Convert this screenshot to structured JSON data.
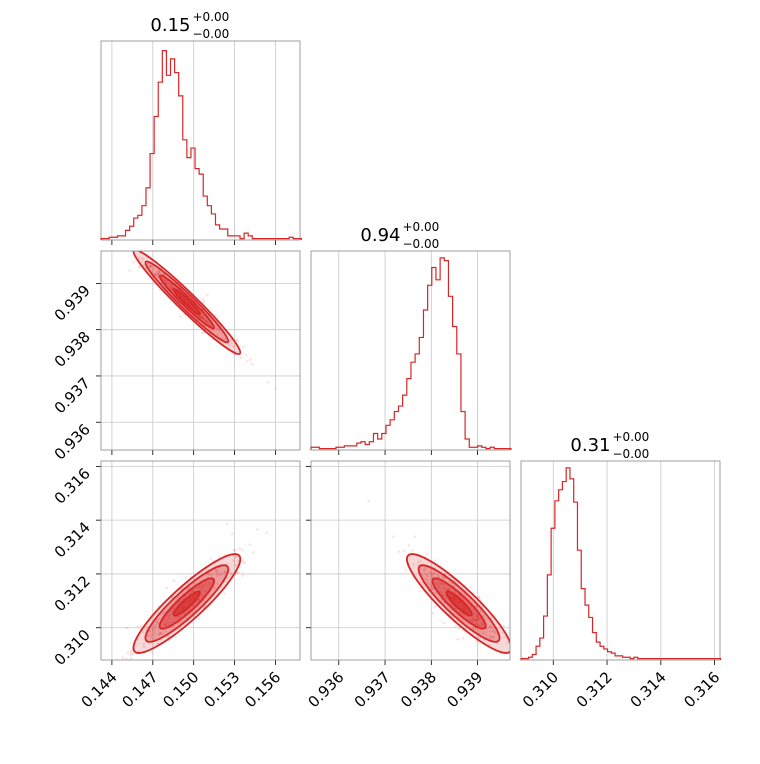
{
  "figure": {
    "type": "corner-plot",
    "accent_color": "#d62728",
    "grid": true
  },
  "chart_data": [
    {
      "type": "histogram",
      "panel": "hist-0",
      "title_value": "0.15",
      "title_sup": "+0.00",
      "title_sub": "−0.00",
      "xlim": [
        0.1432,
        0.1578
      ],
      "ylim": [
        0,
        145
      ],
      "x_ticks": [
        0.144,
        0.147,
        0.15,
        0.153,
        0.156
      ],
      "bin_start": 0.1432,
      "bin_width": 0.0003,
      "counts": [
        1,
        1,
        2,
        2,
        3,
        3,
        7,
        10,
        16,
        18,
        25,
        38,
        63,
        90,
        115,
        138,
        120,
        132,
        122,
        105,
        73,
        60,
        67,
        52,
        48,
        32,
        25,
        19,
        11,
        8,
        8,
        3,
        3,
        3,
        1,
        5,
        3,
        1,
        1,
        1,
        1,
        1,
        1,
        1,
        1,
        1,
        2,
        1,
        1
      ]
    },
    {
      "type": "histogram",
      "panel": "hist-1",
      "title_value": "0.94",
      "title_sup": "+0.00",
      "title_sub": "−0.00",
      "xlim": [
        0.9354,
        0.9397
      ],
      "ylim": [
        0,
        145
      ],
      "x_ticks": [
        0.936,
        0.937,
        0.938,
        0.939
      ],
      "bin_start": 0.9354,
      "bin_width": 9e-05,
      "counts": [
        2,
        2,
        1,
        1,
        1,
        1,
        2,
        2,
        3,
        3,
        3,
        5,
        6,
        4,
        6,
        12,
        8,
        12,
        18,
        22,
        28,
        32,
        40,
        52,
        64,
        70,
        82,
        102,
        120,
        133,
        124,
        140,
        138,
        112,
        90,
        70,
        28,
        8,
        2,
        2,
        3,
        2,
        1,
        2,
        1,
        1,
        1,
        1
      ]
    },
    {
      "type": "histogram",
      "panel": "hist-2",
      "title_value": "0.31",
      "title_sup": "+0.00",
      "title_sub": "−0.00",
      "xlim": [
        0.3088,
        0.3162
      ],
      "ylim": [
        0,
        145
      ],
      "x_ticks": [
        0.31,
        0.312,
        0.314,
        0.316
      ],
      "bin_start": 0.3088,
      "bin_width": 0.00014,
      "counts": [
        1,
        1,
        2,
        4,
        10,
        16,
        32,
        62,
        96,
        116,
        124,
        130,
        140,
        132,
        115,
        80,
        52,
        40,
        31,
        20,
        13,
        10,
        8,
        6,
        5,
        3,
        3,
        2,
        2,
        1,
        2,
        1,
        1,
        1,
        1,
        1,
        1,
        1,
        1,
        1,
        1,
        1,
        1,
        1,
        1,
        1,
        1,
        1,
        1,
        1,
        1,
        1,
        1
      ]
    },
    {
      "type": "contour",
      "panel": "c-10",
      "x_param": 0,
      "y_param": 1,
      "xlim": [
        0.1432,
        0.1578
      ],
      "ylim": [
        0.9354,
        0.9397
      ],
      "x_ticks": [
        0.144,
        0.147,
        0.15,
        0.153,
        0.156
      ],
      "y_ticks": [
        0.936,
        0.937,
        0.938,
        0.939
      ],
      "y_tick_labels": [
        "0.936",
        "0.937",
        "0.938",
        "0.939"
      ],
      "mean": [
        0.1495,
        0.9386
      ],
      "sd": [
        0.0016,
        0.00046
      ],
      "corr": -0.97
    },
    {
      "type": "contour",
      "panel": "c-20",
      "x_param": 0,
      "y_param": 2,
      "xlim": [
        0.1432,
        0.1578
      ],
      "ylim": [
        0.3088,
        0.3162
      ],
      "x_ticks": [
        0.144,
        0.147,
        0.15,
        0.153,
        0.156
      ],
      "x_tick_labels": [
        "0.144",
        "0.147",
        "0.150",
        "0.153",
        "0.156"
      ],
      "y_ticks": [
        0.31,
        0.312,
        0.314,
        0.316
      ],
      "y_tick_labels": [
        "0.310",
        "0.312",
        "0.314",
        "0.316"
      ],
      "mean": [
        0.1495,
        0.3109
      ],
      "sd": [
        0.0016,
        0.00075
      ],
      "corr": 0.9
    },
    {
      "type": "contour",
      "panel": "c-21",
      "x_param": 1,
      "y_param": 2,
      "xlim": [
        0.9354,
        0.9397
      ],
      "ylim": [
        0.3088,
        0.3162
      ],
      "x_ticks": [
        0.936,
        0.937,
        0.938,
        0.939
      ],
      "x_tick_labels": [
        "0.936",
        "0.937",
        "0.938",
        "0.939"
      ],
      "y_ticks": [
        0.31,
        0.312,
        0.314,
        0.316
      ],
      "mean": [
        0.9386,
        0.3109
      ],
      "sd": [
        0.00046,
        0.00075
      ],
      "corr": -0.9
    }
  ],
  "bottom_right_x_tick_labels": [
    "0.310",
    "0.312",
    "0.314",
    "0.316"
  ]
}
